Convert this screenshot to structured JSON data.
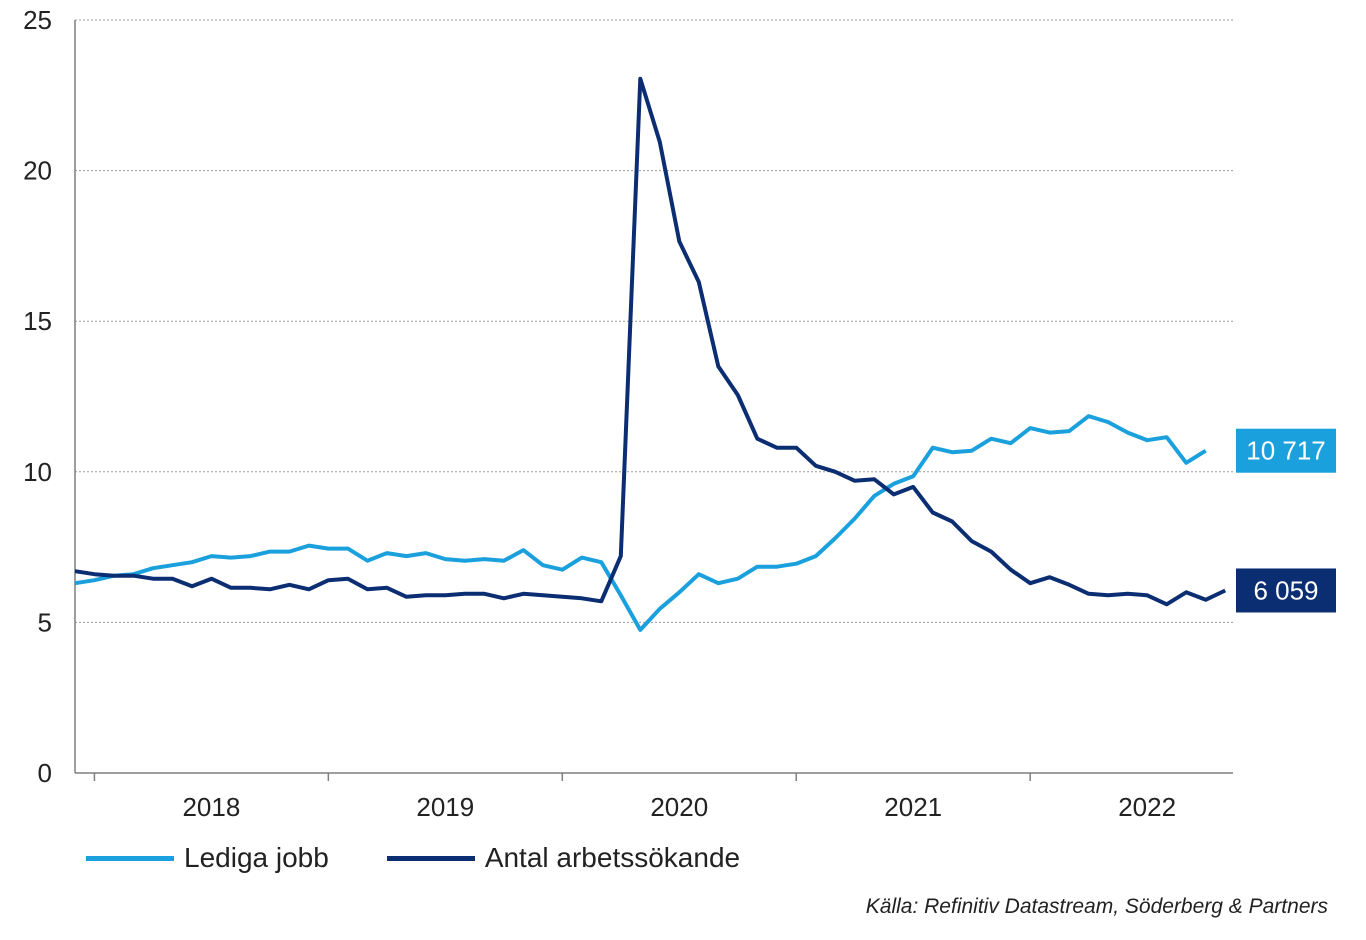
{
  "chart_data": {
    "type": "line",
    "yticks": [
      0,
      5,
      10,
      15,
      20,
      25
    ],
    "ylim": [
      0,
      25
    ],
    "xlim": [
      2017.5,
      2022.45
    ],
    "x_year_labels": [
      "2018",
      "2019",
      "2020",
      "2021",
      "2022"
    ],
    "grid": true,
    "legend_placement": "bottom-left",
    "source": "Källa: Refinitiv Datastream, Söderberg & Partners",
    "series": [
      {
        "name": "Lediga jobb",
        "color": "#1aa0dc",
        "end_label": "10 717",
        "start": 2017.5,
        "step": 0.08333,
        "values": [
          6.3,
          6.4,
          6.55,
          6.6,
          6.8,
          6.9,
          7.0,
          7.2,
          7.15,
          7.2,
          7.35,
          7.35,
          7.55,
          7.45,
          7.45,
          7.05,
          7.3,
          7.2,
          7.3,
          7.1,
          7.05,
          7.1,
          7.05,
          7.4,
          6.9,
          6.75,
          7.15,
          7.0,
          5.9,
          4.75,
          5.45,
          6.0,
          6.6,
          6.3,
          6.45,
          6.85,
          6.85,
          6.95,
          7.2,
          7.8,
          8.45,
          9.2,
          9.6,
          9.85,
          10.8,
          10.65,
          10.7,
          11.1,
          10.95,
          11.45,
          11.3,
          11.35,
          11.85,
          11.65,
          11.3,
          11.05,
          11.15,
          10.3,
          10.7
        ]
      },
      {
        "name": "Antal arbetssökande",
        "color": "#0b2d72",
        "end_label": "6 059",
        "start": 2017.5,
        "step": 0.08333,
        "values": [
          6.7,
          6.6,
          6.55,
          6.55,
          6.45,
          6.45,
          6.2,
          6.45,
          6.15,
          6.15,
          6.1,
          6.25,
          6.1,
          6.4,
          6.45,
          6.1,
          6.15,
          5.85,
          5.9,
          5.9,
          5.95,
          5.95,
          5.8,
          5.95,
          5.9,
          5.85,
          5.8,
          5.7,
          7.2,
          23.05,
          20.95,
          17.65,
          16.3,
          13.5,
          12.55,
          11.1,
          10.8,
          10.8,
          10.2,
          10.0,
          9.7,
          9.75,
          9.25,
          9.5,
          8.65,
          8.35,
          7.7,
          7.35,
          6.75,
          6.3,
          6.5,
          6.25,
          5.95,
          5.9,
          5.95,
          5.9,
          5.6,
          6.0,
          5.75,
          6.06
        ]
      }
    ]
  }
}
